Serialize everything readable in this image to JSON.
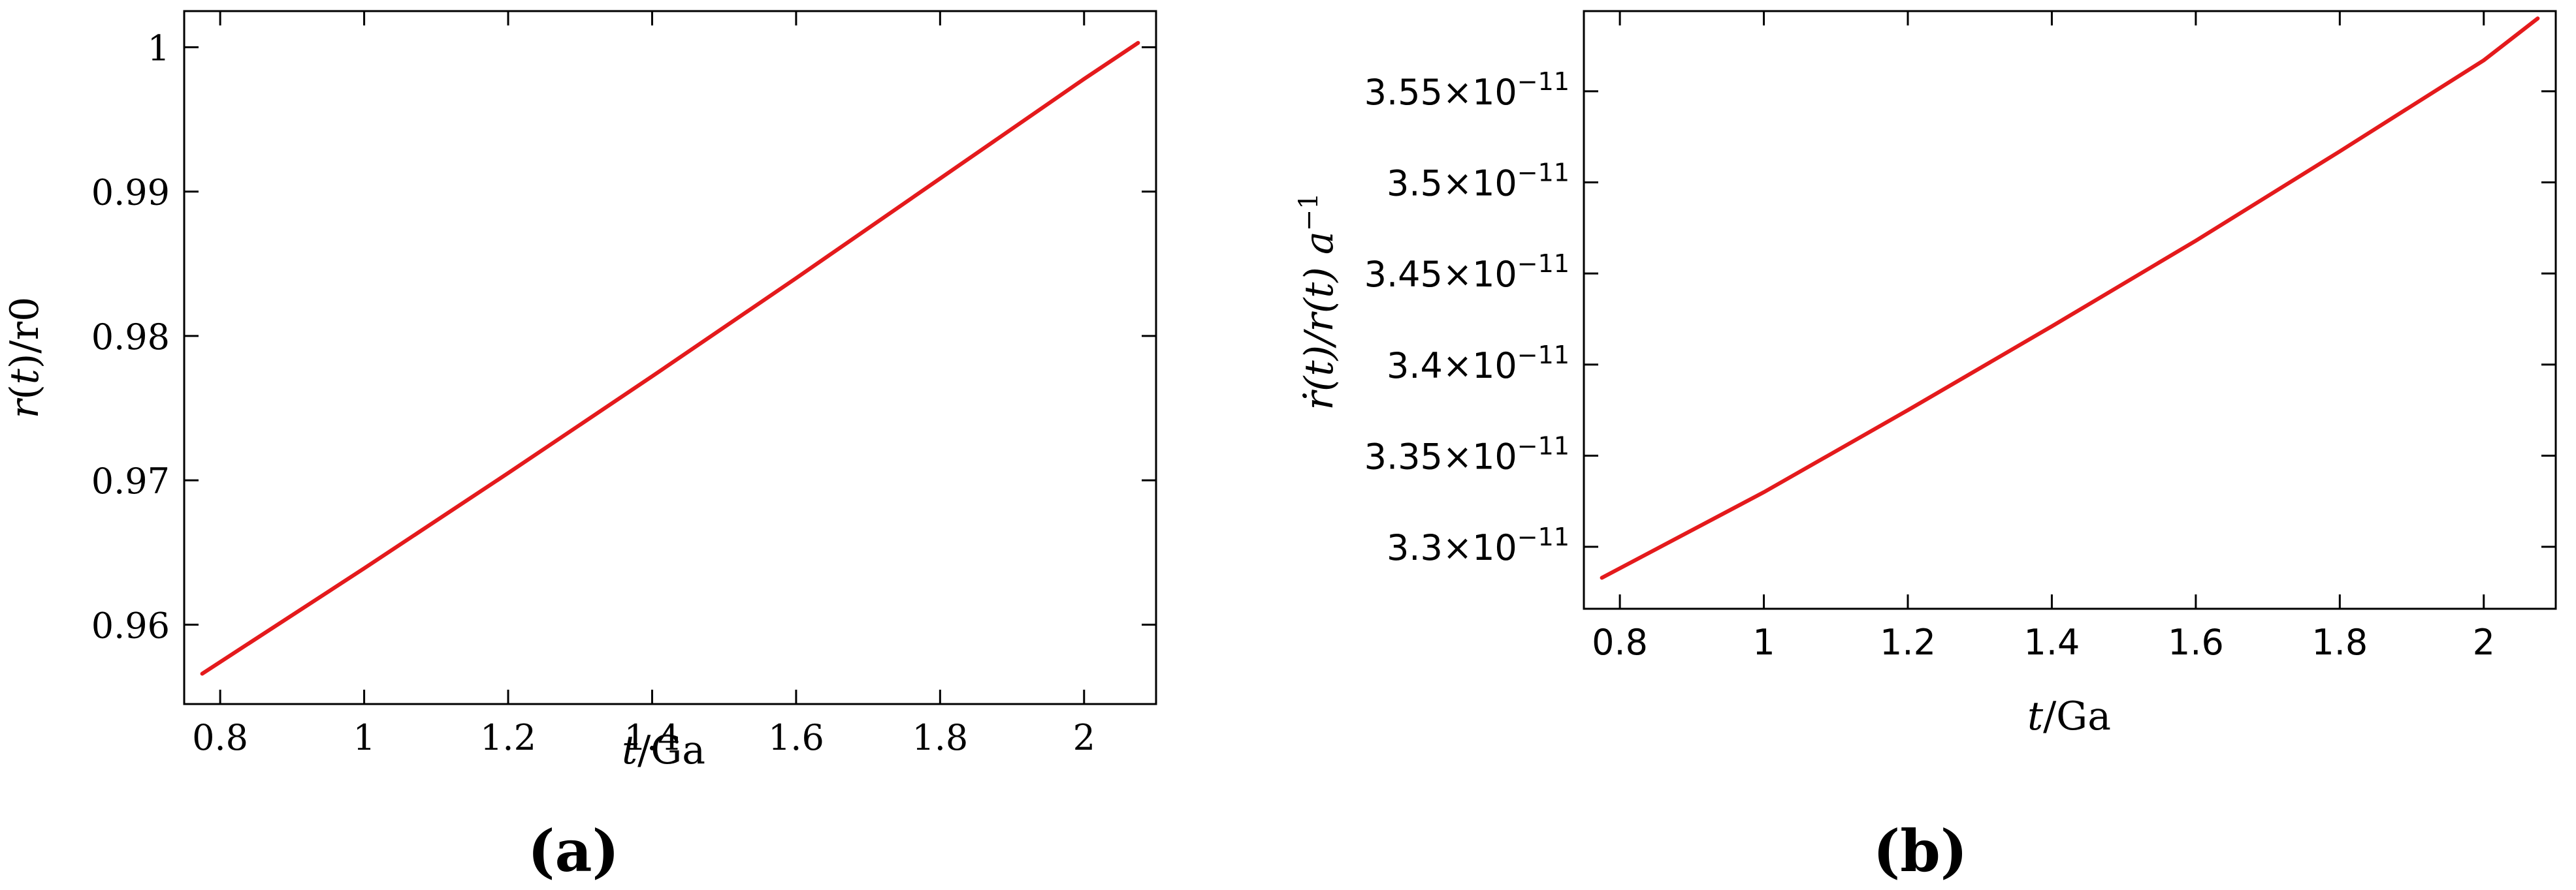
{
  "colors": {
    "series": "#e41a1c",
    "frame": "#000000"
  },
  "chart_data": [
    {
      "type": "line",
      "panel_label": "(a)",
      "xlabel_italic": "t",
      "xlabel_rest": "/Ga",
      "ylabel_italic_1": "r",
      "ylabel_paren_open": "(",
      "ylabel_italic_2": "t",
      "ylabel_rest": ")/r0",
      "xlim": [
        0.75,
        2.1
      ],
      "ylim": [
        0.9545,
        1.0025
      ],
      "xticks": [
        {
          "value": 0.8,
          "label": "0.8"
        },
        {
          "value": 1.0,
          "label": "1"
        },
        {
          "value": 1.2,
          "label": "1.2"
        },
        {
          "value": 1.4,
          "label": "1.4"
        },
        {
          "value": 1.6,
          "label": "1.6"
        },
        {
          "value": 1.8,
          "label": "1.8"
        },
        {
          "value": 2.0,
          "label": "2"
        }
      ],
      "yticks": [
        {
          "value": 0.96,
          "label": "0.96"
        },
        {
          "value": 0.97,
          "label": "0.97"
        },
        {
          "value": 0.98,
          "label": "0.98"
        },
        {
          "value": 0.99,
          "label": "0.99"
        },
        {
          "value": 1.0,
          "label": "1"
        }
      ],
      "series": [
        {
          "x": [
            0.775,
            1.0,
            1.2,
            1.4,
            1.6,
            1.8,
            2.0,
            2.075
          ],
          "y": [
            0.9566,
            0.9639,
            0.9705,
            0.9772,
            0.984,
            0.9909,
            0.9978,
            1.0003
          ]
        }
      ]
    },
    {
      "type": "line",
      "panel_label": "(b)",
      "xlabel_italic": "t",
      "xlabel_rest": "/Ga",
      "ylabel_text": "ṙ(t)/r(t)  a",
      "ylabel_sup": "−1",
      "tick_mantissa_suffix": "×10",
      "tick_exponent": "−11",
      "xlim": [
        0.75,
        2.1
      ],
      "ylim": [
        3.266e-11,
        3.594e-11
      ],
      "xticks": [
        {
          "value": 0.8,
          "label": "0.8"
        },
        {
          "value": 1.0,
          "label": "1"
        },
        {
          "value": 1.2,
          "label": "1.2"
        },
        {
          "value": 1.4,
          "label": "1.4"
        },
        {
          "value": 1.6,
          "label": "1.6"
        },
        {
          "value": 1.8,
          "label": "1.8"
        },
        {
          "value": 2.0,
          "label": "2"
        }
      ],
      "yticks": [
        {
          "value": 3.3e-11,
          "label": "3.3"
        },
        {
          "value": 3.35e-11,
          "label": "3.35"
        },
        {
          "value": 3.4e-11,
          "label": "3.4"
        },
        {
          "value": 3.45e-11,
          "label": "3.45"
        },
        {
          "value": 3.5e-11,
          "label": "3.5"
        },
        {
          "value": 3.55e-11,
          "label": "3.55"
        }
      ],
      "series": [
        {
          "x": [
            0.775,
            1.0,
            1.2,
            1.4,
            1.6,
            1.8,
            2.0,
            2.075
          ],
          "y": [
            3.283e-11,
            3.33e-11,
            3.375e-11,
            3.421e-11,
            3.468e-11,
            3.517e-11,
            3.567e-11,
            3.59e-11
          ]
        }
      ]
    }
  ]
}
